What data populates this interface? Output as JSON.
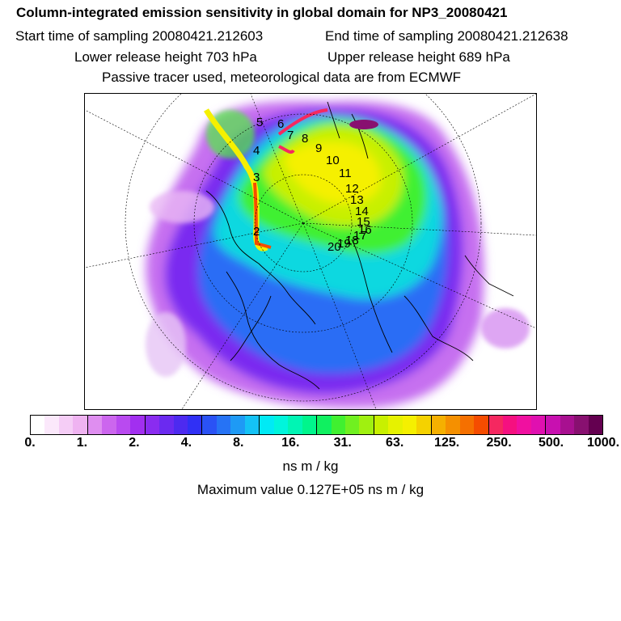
{
  "header": {
    "title": "Column-integrated emission sensitivity in global domain for NP3_20080421",
    "start_time": "Start time of sampling 20080421.212603",
    "end_time": "End time of sampling 20080421.212638",
    "lower_height": "Lower release height  703 hPa",
    "upper_height": "Upper release height  689 hPa",
    "tracer_note": "Passive tracer used, meteorological data are from ECMWF"
  },
  "map": {
    "trajectory_labels": [
      "2",
      "3",
      "4",
      "5",
      "6",
      "7",
      "8",
      "9",
      "10",
      "11",
      "12",
      "13",
      "14",
      "15",
      "16",
      "17",
      "18",
      "19",
      "20"
    ]
  },
  "colorbar": {
    "colors": [
      "#ffffff",
      "#fbe8fb",
      "#f5cdf6",
      "#efb3f1",
      "#df8ef0",
      "#cc66ee",
      "#b94af0",
      "#a22ff0",
      "#8a2cf0",
      "#6b2af0",
      "#4d2af0",
      "#3030f5",
      "#2a52f5",
      "#2673f5",
      "#1e9af5",
      "#14c2f5",
      "#00eaf5",
      "#00f5dc",
      "#00f5b4",
      "#00f58c",
      "#10f060",
      "#40f030",
      "#70f020",
      "#a0f010",
      "#c8f000",
      "#e6f200",
      "#f5f000",
      "#f5d200",
      "#f5b000",
      "#f59000",
      "#f57000",
      "#f54c00",
      "#f52860",
      "#f51080",
      "#f010a0",
      "#e010b0",
      "#c810b0",
      "#a81090",
      "#881070",
      "#640050"
    ],
    "tick_labels": [
      "0.",
      "1.",
      "2.",
      "4.",
      "8.",
      "16.",
      "31.",
      "63.",
      "125.",
      "250.",
      "500.",
      "1000."
    ],
    "unit": "ns m / kg"
  },
  "max_value": "Maximum value  0.127E+05 ns m / kg"
}
